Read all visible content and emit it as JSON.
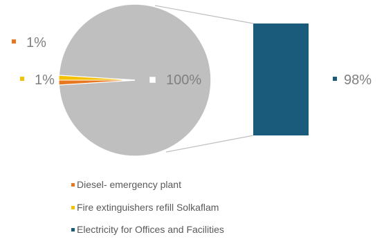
{
  "chart_data": {
    "type": "pie",
    "title": "",
    "slices": [
      {
        "name": "Diesel- emergency plant",
        "value": 1,
        "label": "1%",
        "color": "#e87722"
      },
      {
        "name": "Fire extinguishers refill Solkaflam",
        "value": 1,
        "label": "1%",
        "color": "#f5c000"
      },
      {
        "name": "Electricity for Offices and Facilities",
        "value": 98,
        "label": "98%",
        "color": "#1a5a7a"
      }
    ],
    "pie_group": {
      "label": "100%",
      "color": "#bfbfbf",
      "members": [
        "Diesel- emergency plant",
        "Fire extinguishers refill Solkaflam"
      ]
    },
    "exploded_bar": {
      "member": "Electricity for Offices and Facilities"
    },
    "legend": {
      "placement": "bottom",
      "items": [
        "Diesel- emergency plant",
        "Fire extinguishers refill Solkaflam",
        "Electricity for Offices and Facilities"
      ]
    }
  }
}
